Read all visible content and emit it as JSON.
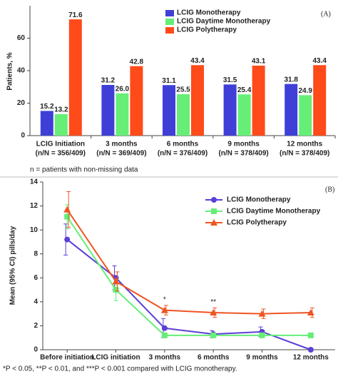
{
  "chart_data": [
    {
      "type": "bar",
      "panel_label": "(A)",
      "y_label": "Patients, %",
      "categories": [
        "LCIG Initiation",
        "3 months",
        "6 months",
        "9 months",
        "12 months"
      ],
      "category_sublabels": [
        "(n/N = 356/409)",
        "(n/N = 369/409)",
        "(n/N = 376/409)",
        "(n/N = 378/409)",
        "(n/N = 378/409)"
      ],
      "series": [
        {
          "name": "LCIG Monotherapy",
          "color": "#3f3fd8",
          "values": [
            15.2,
            31.2,
            31.1,
            31.5,
            31.8
          ]
        },
        {
          "name": "LCIG Daytime Monotherapy",
          "color": "#66ee77",
          "values": [
            13.2,
            26.0,
            25.5,
            25.4,
            24.9
          ],
          "value_labels": [
            "13.2",
            "26.0",
            "25.5",
            "25.4",
            "24.9"
          ]
        },
        {
          "name": "LCIG Polytherapy",
          "color": "#ff4a1a",
          "values": [
            71.6,
            42.8,
            43.4,
            43.1,
            43.4
          ]
        }
      ],
      "ylim": [
        0,
        80
      ],
      "yticks": [
        0,
        20,
        40,
        60
      ],
      "legend": "top-right",
      "footnote": "n = patients with non-missing data"
    },
    {
      "type": "line",
      "panel_label": "(B)",
      "y_label": "Mean (95% CI) pills/day",
      "categories": [
        "Before initiation",
        "LCIG initiation",
        "3 months",
        "6 months",
        "9 months",
        "12 months"
      ],
      "series": [
        {
          "name": "LCIG Monotherapy",
          "color": "#5b3fd6",
          "marker": "circle",
          "values": [
            9.2,
            6.0,
            1.8,
            1.3,
            1.5,
            0.0
          ],
          "errors": [
            1.3,
            1.0,
            0.8,
            0.3,
            0.4,
            0.0
          ]
        },
        {
          "name": "LCIG Daytime Monotherapy",
          "color": "#66ee77",
          "marker": "square",
          "values": [
            11.1,
            5.0,
            1.2,
            1.2,
            1.2,
            1.2
          ],
          "errors": [
            1.0,
            0.9,
            0.0,
            0.0,
            0.0,
            0.0
          ]
        },
        {
          "name": "LCIG Polytherapy",
          "color": "#ee5522",
          "marker": "triangle",
          "values": [
            11.7,
            5.7,
            3.3,
            3.1,
            3.0,
            3.1
          ],
          "errors": [
            1.5,
            0.8,
            0.4,
            0.4,
            0.4,
            0.4
          ]
        }
      ],
      "significance": [
        null,
        null,
        "*",
        "**",
        null,
        null
      ],
      "ylim": [
        0,
        14
      ],
      "yticks": [
        0,
        2,
        4,
        6,
        8,
        10,
        12,
        14
      ],
      "legend": "top-right",
      "footnote": "*P < 0.05, **P < 0.01, and ***P < 0.001 compared with LCIG monotherapy."
    }
  ]
}
